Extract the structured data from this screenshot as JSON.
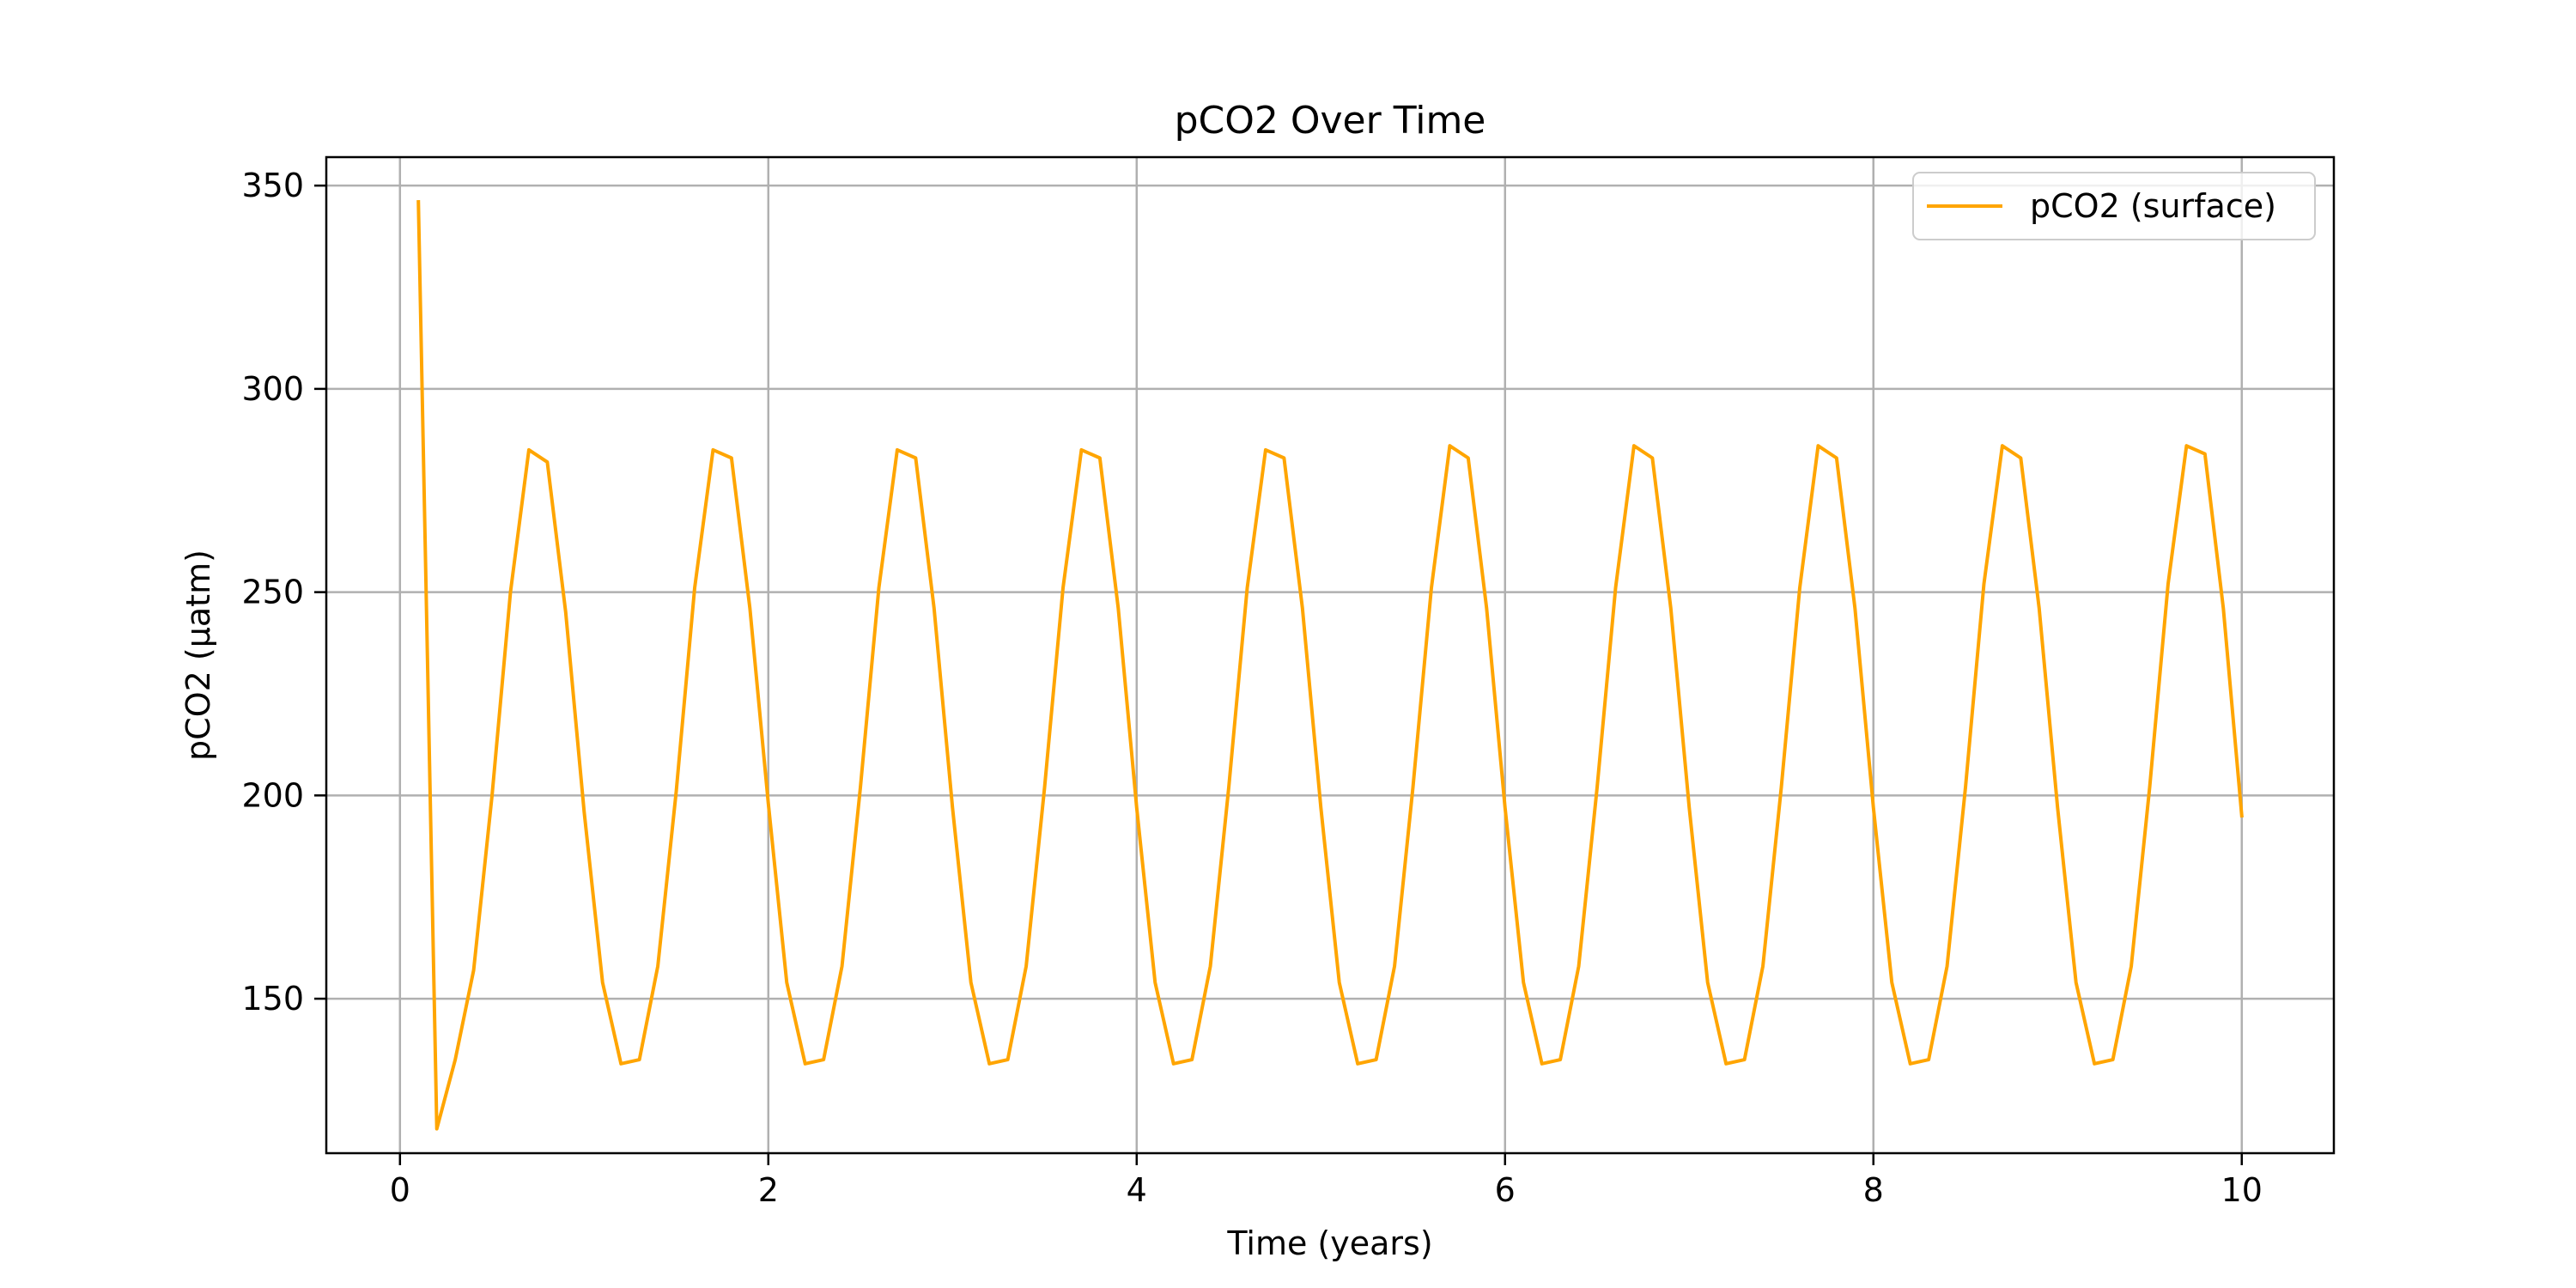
{
  "chart_data": {
    "type": "line",
    "title": "pCO2 Over Time",
    "xlabel": "Time (years)",
    "ylabel": "pCO2 (µatm)",
    "xlim": [
      -0.4,
      10.5
    ],
    "ylim": [
      112,
      357
    ],
    "xticks": [
      0,
      2,
      4,
      6,
      8,
      10
    ],
    "xtick_labels": [
      "0",
      "2",
      "4",
      "6",
      "8",
      "10"
    ],
    "yticks": [
      150,
      200,
      250,
      300,
      350
    ],
    "ytick_labels": [
      "150",
      "200",
      "250",
      "300",
      "350"
    ],
    "grid": true,
    "legend": {
      "position": "top-right"
    },
    "series": [
      {
        "name": "pCO2 (surface)",
        "color": "#FFA500",
        "x": [
          0.1,
          0.2,
          0.3,
          0.4,
          0.5,
          0.6,
          0.7,
          0.8,
          0.9,
          1.0,
          1.1,
          1.2,
          1.3,
          1.4,
          1.5,
          1.6,
          1.7,
          1.8,
          1.9,
          2.0,
          2.1,
          2.2,
          2.3,
          2.4,
          2.5,
          2.6,
          2.7,
          2.8,
          2.9,
          3.0,
          3.1,
          3.2,
          3.3,
          3.4,
          3.5,
          3.6,
          3.7,
          3.8,
          3.9,
          4.0,
          4.1,
          4.2,
          4.3,
          4.4,
          4.5,
          4.6,
          4.7,
          4.8,
          4.9,
          5.0,
          5.1,
          5.2,
          5.3,
          5.4,
          5.5,
          5.6,
          5.7,
          5.8,
          5.9,
          6.0,
          6.1,
          6.2,
          6.3,
          6.4,
          6.5,
          6.6,
          6.7,
          6.8,
          6.9,
          7.0,
          7.1,
          7.2,
          7.3,
          7.4,
          7.5,
          7.6,
          7.7,
          7.8,
          7.9,
          8.0,
          8.1,
          8.2,
          8.3,
          8.4,
          8.5,
          8.6,
          8.7,
          8.8,
          8.9,
          9.0,
          9.1,
          9.2,
          9.3,
          9.4,
          9.5,
          9.6,
          9.7,
          9.8,
          9.9,
          10.0
        ],
        "y": [
          346,
          118,
          135,
          157,
          200,
          250,
          285,
          282,
          245,
          196,
          154,
          134,
          135,
          158,
          201,
          251,
          285,
          283,
          246,
          198,
          154,
          134,
          135,
          158,
          202,
          251,
          285,
          283,
          246,
          197,
          154,
          134,
          135,
          158,
          202,
          251,
          285,
          283,
          246,
          197,
          154,
          134,
          135,
          158,
          202,
          251,
          285,
          283,
          246,
          197,
          154,
          134,
          135,
          158,
          202,
          251,
          286,
          283,
          246,
          197,
          154,
          134,
          135,
          158,
          202,
          251,
          286,
          283,
          246,
          197,
          154,
          134,
          135,
          158,
          202,
          251,
          286,
          283,
          246,
          197,
          154,
          134,
          135,
          158,
          202,
          252,
          286,
          283,
          246,
          197,
          154,
          134,
          135,
          158,
          202,
          252,
          286,
          284,
          246,
          195
        ]
      }
    ]
  }
}
